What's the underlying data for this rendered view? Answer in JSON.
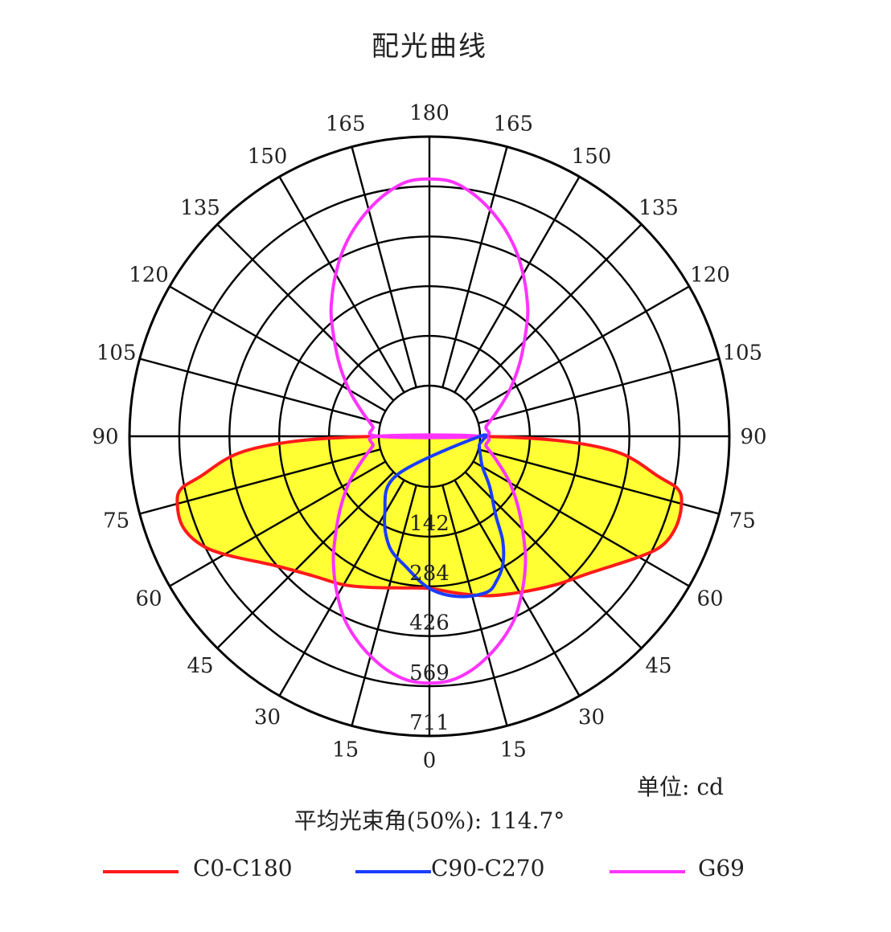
{
  "title": "配光曲线",
  "unit_text": "单位: cd",
  "beam_text": "平均光束角(50%): 114.7°",
  "legend": [
    {
      "label": "C0-C180",
      "color": "#ff1a1a"
    },
    {
      "label": "C90-C270",
      "color": "#1a3dff"
    },
    {
      "label": "G69",
      "color": "#ff33ff"
    }
  ],
  "chart_data": {
    "type": "polar",
    "title": "配光曲线",
    "angle_labels_left": [
      "0",
      "15",
      "30",
      "45",
      "60",
      "75",
      "90",
      "105",
      "120",
      "135",
      "150",
      "165",
      "180"
    ],
    "angle_labels_right": [
      "15",
      "30",
      "45",
      "60",
      "75",
      "90",
      "105",
      "120",
      "135",
      "150",
      "165"
    ],
    "radial_ticks": [
      "142",
      "284",
      "426",
      "569",
      "711"
    ],
    "radial_max": 711,
    "fill_color": "#ffff33",
    "series": [
      {
        "name": "C0-C180",
        "color": "#ff1a1a",
        "filled": true,
        "angles_deg": [
          0,
          10,
          20,
          30,
          40,
          50,
          60,
          65,
          70,
          75,
          78,
          80,
          85,
          88,
          90
        ],
        "left_cd": [
          290,
          295,
          315,
          345,
          375,
          430,
          530,
          580,
          605,
          600,
          580,
          520,
          400,
          230,
          0
        ],
        "right_cd": [
          290,
          310,
          340,
          370,
          410,
          460,
          545,
          590,
          605,
          600,
          580,
          520,
          400,
          230,
          0
        ]
      },
      {
        "name": "C90-C270",
        "color": "#1a3dff",
        "filled": false,
        "angles_deg": [
          -40,
          -30,
          -20,
          -10,
          0,
          10,
          20,
          25,
          30,
          35,
          40,
          50,
          60,
          70,
          80,
          90
        ],
        "cd": [
          0,
          110,
          190,
          235,
          290,
          320,
          330,
          310,
          275,
          220,
          150,
          80,
          30,
          10,
          0,
          0
        ]
      },
      {
        "name": "G69",
        "color": "#ff33ff",
        "filled": false,
        "angles_deg": [
          0,
          5,
          10,
          15,
          20,
          25,
          30,
          35,
          40,
          50,
          60,
          70,
          80,
          90
        ],
        "lower_cd": [
          560,
          555,
          535,
          505,
          470,
          430,
          380,
          330,
          280,
          190,
          120,
          60,
          20,
          0
        ],
        "upper_cd": [
          590,
          585,
          560,
          525,
          485,
          440,
          390,
          340,
          290,
          195,
          120,
          60,
          20,
          0
        ]
      }
    ]
  }
}
